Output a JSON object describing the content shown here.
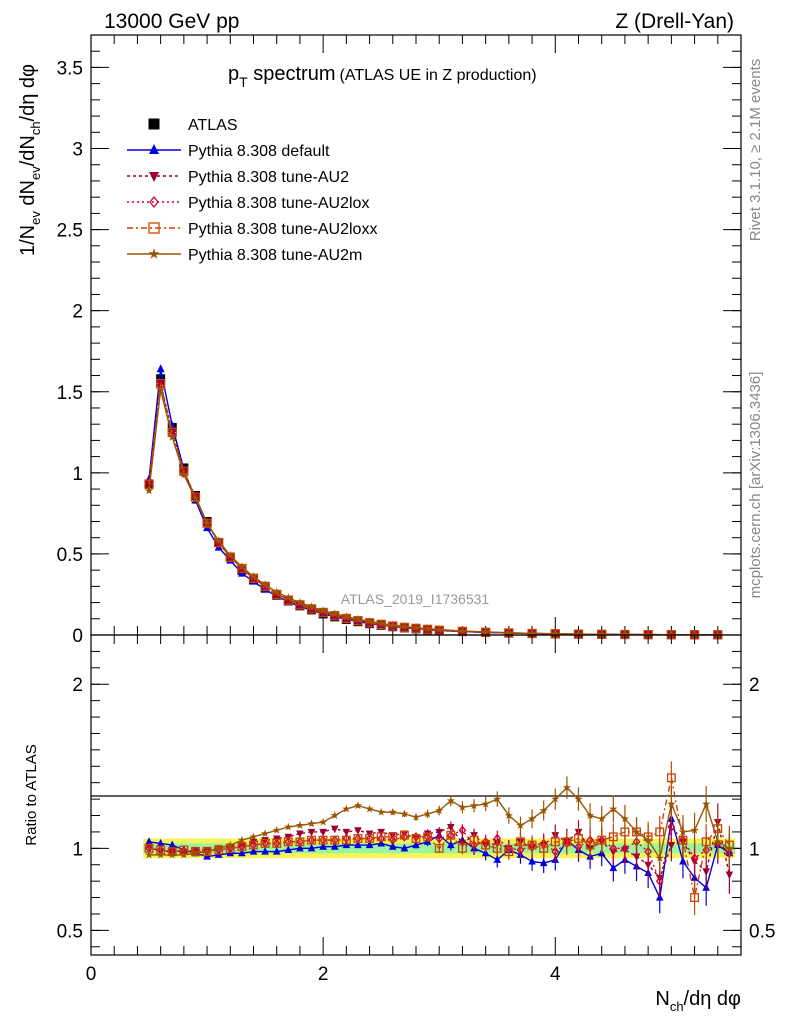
{
  "header": {
    "energy_label": "13000 GeV pp",
    "process_label": "Z (Drell-Yan)"
  },
  "side_labels": {
    "rivet": "Rivet 3.1.10, ≥ 2.1M events",
    "mcplots": "mcplots.cern.ch [arXiv:1306.3436]"
  },
  "watermark": "ATLAS_2019_I1736531",
  "chart_data": [
    {
      "type": "line",
      "panel": "main",
      "title_main": "p",
      "title_sub": "T",
      "title_rest": " spectrum",
      "title_note": "(ATLAS UE in Z production)",
      "ylabel": "1/N_ev dN_ev/dN_ch/dη dφ",
      "xlim": [
        0,
        5.6
      ],
      "ylim": [
        0,
        3.7
      ],
      "yticks": [
        0,
        0.5,
        1,
        1.5,
        2,
        2.5,
        3,
        3.5
      ],
      "ytick_labels": [
        "0",
        "0.5",
        "1",
        "1.5",
        "2",
        "2.5",
        "3",
        "3.5"
      ],
      "legend_placement": "top-left",
      "x": [
        0.5,
        0.6,
        0.7,
        0.8,
        0.9,
        1.0,
        1.1,
        1.2,
        1.3,
        1.4,
        1.5,
        1.6,
        1.7,
        1.8,
        1.9,
        2.0,
        2.1,
        2.2,
        2.3,
        2.4,
        2.5,
        2.6,
        2.7,
        2.8,
        2.9,
        3.0,
        3.2,
        3.4,
        3.6,
        3.8,
        4.0,
        4.2,
        4.4,
        4.6,
        4.8,
        5.0,
        5.2,
        5.4
      ],
      "series": [
        {
          "name": "ATLAS",
          "color": "#000000",
          "marker": "square",
          "dash": "none",
          "values": [
            0.93,
            1.58,
            1.28,
            1.03,
            0.86,
            0.7,
            0.57,
            0.48,
            0.4,
            0.34,
            0.29,
            0.245,
            0.21,
            0.18,
            0.155,
            0.13,
            0.112,
            0.096,
            0.082,
            0.07,
            0.06,
            0.051,
            0.044,
            0.038,
            0.032,
            0.028,
            0.021,
            0.016,
            0.012,
            0.009,
            0.007,
            0.005,
            0.004,
            0.003,
            0.0023,
            0.0018,
            0.0013,
            0.001
          ]
        },
        {
          "name": "Pythia 8.308 default",
          "color": "#0000dd",
          "marker": "triangle-up",
          "dash": "none",
          "values": [
            0.96,
            1.64,
            1.29,
            1.02,
            0.83,
            0.66,
            0.54,
            0.46,
            0.38,
            0.33,
            0.28,
            0.24,
            0.205,
            0.176,
            0.153,
            0.13,
            0.113,
            0.097,
            0.083,
            0.071,
            0.061,
            0.052,
            0.045,
            0.039,
            0.033,
            0.028,
            0.021,
            0.016,
            0.012,
            0.009,
            0.007,
            0.005,
            0.0039,
            0.0028,
            0.0021,
            0.0016,
            0.0011,
            0.0009
          ]
        },
        {
          "name": "Pythia 8.308 tune-AU2",
          "color": "#990033",
          "marker": "triangle-down",
          "dash": "3,3",
          "values": [
            0.94,
            1.55,
            1.25,
            1.01,
            0.85,
            0.69,
            0.57,
            0.48,
            0.41,
            0.35,
            0.3,
            0.255,
            0.22,
            0.19,
            0.165,
            0.142,
            0.123,
            0.106,
            0.091,
            0.078,
            0.067,
            0.057,
            0.049,
            0.042,
            0.036,
            0.031,
            0.023,
            0.017,
            0.013,
            0.0096,
            0.0074,
            0.0054,
            0.0041,
            0.0031,
            0.0022,
            0.0018,
            0.0013,
            0.001
          ]
        },
        {
          "name": "Pythia 8.308 tune-AU2lox",
          "color": "#cc0033",
          "marker": "diamond",
          "dash": "2,3",
          "values": [
            0.93,
            1.54,
            1.24,
            1.0,
            0.85,
            0.69,
            0.57,
            0.48,
            0.41,
            0.35,
            0.3,
            0.25,
            0.215,
            0.185,
            0.16,
            0.138,
            0.118,
            0.101,
            0.087,
            0.075,
            0.064,
            0.055,
            0.047,
            0.04,
            0.034,
            0.029,
            0.022,
            0.0165,
            0.0125,
            0.0093,
            0.0072,
            0.0052,
            0.004,
            0.003,
            0.0022,
            0.0018,
            0.0013,
            0.001
          ]
        },
        {
          "name": "Pythia 8.308 tune-AU2loxx",
          "color": "#cc4400",
          "marker": "square-open",
          "dash": "6,3,2,3",
          "values": [
            0.93,
            1.55,
            1.25,
            1.01,
            0.85,
            0.69,
            0.57,
            0.48,
            0.41,
            0.35,
            0.3,
            0.25,
            0.215,
            0.186,
            0.161,
            0.139,
            0.119,
            0.102,
            0.088,
            0.075,
            0.065,
            0.055,
            0.047,
            0.041,
            0.035,
            0.029,
            0.022,
            0.0165,
            0.0125,
            0.0094,
            0.0073,
            0.0053,
            0.0041,
            0.0031,
            0.0022,
            0.0019,
            0.0013,
            0.001
          ]
        },
        {
          "name": "Pythia 8.308 tune-AU2m",
          "color": "#995500",
          "marker": "star",
          "dash": "none",
          "values": [
            0.89,
            1.51,
            1.22,
            0.99,
            0.84,
            0.69,
            0.58,
            0.49,
            0.42,
            0.36,
            0.31,
            0.265,
            0.23,
            0.2,
            0.174,
            0.15,
            0.13,
            0.113,
            0.097,
            0.083,
            0.071,
            0.061,
            0.053,
            0.045,
            0.039,
            0.033,
            0.025,
            0.019,
            0.014,
            0.01,
            0.0078,
            0.0056,
            0.0043,
            0.0032,
            0.0023,
            0.0019,
            0.0014,
            0.0011
          ]
        }
      ]
    },
    {
      "type": "line",
      "panel": "ratio",
      "ylabel": "Ratio to ATLAS",
      "xlabel_main": "N",
      "xlabel_sub": "ch",
      "xlabel_rest": "/dη dφ",
      "xlim": [
        0,
        5.6
      ],
      "ylim": [
        0.35,
        2.3
      ],
      "xticks": [
        0,
        2,
        4
      ],
      "xtick_labels": [
        "0",
        "2",
        "4"
      ],
      "yticks": [
        0.5,
        1,
        2
      ],
      "ytick_labels": [
        "0.5",
        "1",
        "2"
      ],
      "x": [
        0.5,
        0.6,
        0.7,
        0.8,
        0.9,
        1.0,
        1.1,
        1.2,
        1.3,
        1.4,
        1.5,
        1.6,
        1.7,
        1.8,
        1.9,
        2.0,
        2.1,
        2.2,
        2.3,
        2.4,
        2.5,
        2.6,
        2.7,
        2.8,
        2.9,
        3.0,
        3.1,
        3.2,
        3.3,
        3.4,
        3.5,
        3.6,
        3.7,
        3.8,
        3.9,
        4.0,
        4.1,
        4.2,
        4.3,
        4.4,
        4.5,
        4.6,
        4.7,
        4.8,
        4.9,
        5.0,
        5.1,
        5.2,
        5.3,
        5.4,
        5.5
      ],
      "band_inner": 0.03,
      "band_outer": 0.06,
      "series": [
        {
          "name": "Pythia 8.308 default",
          "color": "#0000dd",
          "marker": "triangle-up",
          "dash": "none",
          "values": [
            1.04,
            1.03,
            1.02,
            0.99,
            0.97,
            0.95,
            0.96,
            0.97,
            0.97,
            0.98,
            0.98,
            0.98,
            0.99,
            1.0,
            1.0,
            1.01,
            1.01,
            1.02,
            1.02,
            1.02,
            1.03,
            1.01,
            1.0,
            1.02,
            1.04,
            1.08,
            1.02,
            1.05,
            1.0,
            0.97,
            0.93,
            0.99,
            0.96,
            0.92,
            0.91,
            0.93,
            1.05,
            0.99,
            0.95,
            0.97,
            0.88,
            0.93,
            0.89,
            0.85,
            0.7,
            1.18,
            0.92,
            0.82,
            0.76,
            1.02,
            0.97
          ]
        },
        {
          "name": "Pythia 8.308 tune-AU2",
          "color": "#990033",
          "marker": "triangle-down",
          "dash": "3,3",
          "values": [
            1.01,
            0.98,
            0.98,
            0.98,
            0.99,
            0.99,
            1.0,
            1.01,
            1.02,
            1.04,
            1.05,
            1.06,
            1.07,
            1.09,
            1.1,
            1.1,
            1.12,
            1.1,
            1.11,
            1.09,
            1.1,
            1.08,
            1.09,
            1.06,
            1.09,
            1.1,
            1.13,
            1.03,
            1.08,
            1.02,
            1.03,
            1.0,
            1.04,
            1.0,
            1.02,
            1.08,
            1.04,
            1.1,
            1.0,
            1.04,
            0.98,
            0.99,
            0.95,
            0.9,
            0.82,
            1.02,
            1.04,
            0.92,
            0.86,
            1.16,
            0.84
          ]
        },
        {
          "name": "Pythia 8.308 tune-AU2lox",
          "color": "#cc0033",
          "marker": "diamond",
          "dash": "2,3",
          "values": [
            1.0,
            0.99,
            0.98,
            0.98,
            0.98,
            0.98,
            0.99,
            1.0,
            1.01,
            1.02,
            1.03,
            1.03,
            1.04,
            1.04,
            1.05,
            1.05,
            1.05,
            1.06,
            1.06,
            1.06,
            1.06,
            1.05,
            1.07,
            1.07,
            1.07,
            1.06,
            1.08,
            1.11,
            1.02,
            1.04,
            1.06,
            1.0,
            0.99,
            1.02,
            1.03,
            0.98,
            1.03,
            1.01,
            1.05,
            1.05,
            1.0,
            1.0,
            1.04,
            0.98,
            0.8,
            1.13,
            1.05,
            0.94,
            0.99,
            1.03,
            0.97
          ]
        },
        {
          "name": "Pythia 8.308 tune-AU2loxx",
          "color": "#cc4400",
          "marker": "square-open",
          "dash": "6,3,2,3",
          "values": [
            1.0,
            0.99,
            0.98,
            0.99,
            0.98,
            0.98,
            0.99,
            1.0,
            1.01,
            1.02,
            1.03,
            1.03,
            1.04,
            1.04,
            1.05,
            1.05,
            1.05,
            1.05,
            1.06,
            1.06,
            1.07,
            1.07,
            1.08,
            1.06,
            1.07,
            1.0,
            1.08,
            1.0,
            1.05,
            1.02,
            1.0,
            0.98,
            1.04,
            1.02,
            1.0,
            1.04,
            1.04,
            1.06,
            1.02,
            1.05,
            1.07,
            1.1,
            1.1,
            1.07,
            1.1,
            1.43,
            1.05,
            0.7,
            1.04,
            1.12,
            1.02
          ]
        },
        {
          "name": "Pythia 8.308 tune-AU2m",
          "color": "#995500",
          "marker": "star",
          "dash": "none",
          "values": [
            0.96,
            0.96,
            0.96,
            0.96,
            0.97,
            0.98,
            1.0,
            1.02,
            1.05,
            1.07,
            1.09,
            1.11,
            1.13,
            1.14,
            1.15,
            1.16,
            1.2,
            1.24,
            1.26,
            1.24,
            1.22,
            1.22,
            1.21,
            1.19,
            1.21,
            1.23,
            1.29,
            1.25,
            1.26,
            1.27,
            1.3,
            1.2,
            1.14,
            1.18,
            1.23,
            1.3,
            1.37,
            1.3,
            1.2,
            1.18,
            1.24,
            1.18,
            1.1,
            1.05,
            0.94,
            1.27,
            1.1,
            1.11,
            1.27,
            1.04,
            1.0
          ]
        }
      ]
    }
  ]
}
